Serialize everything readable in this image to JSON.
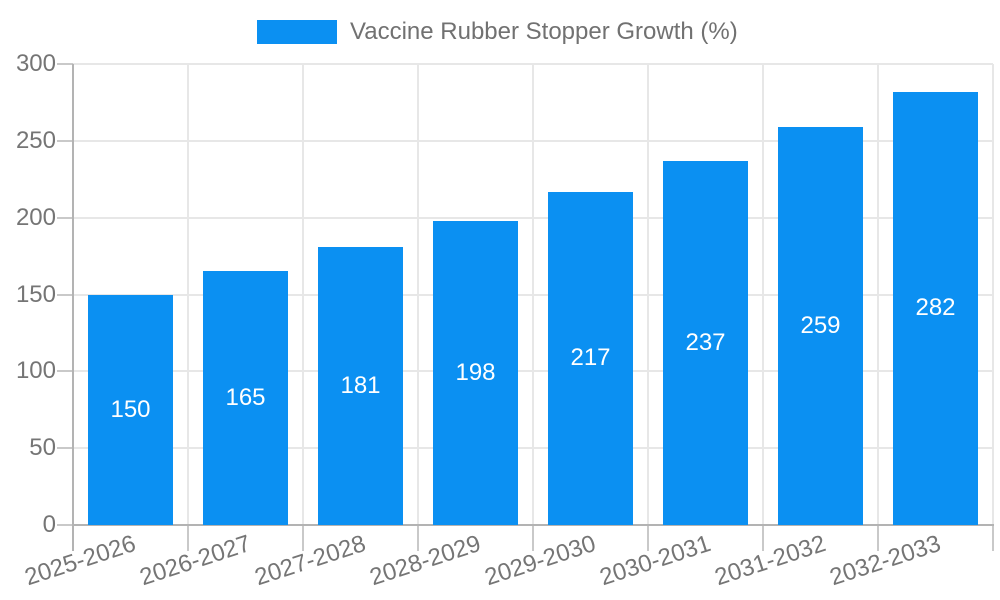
{
  "legend": {
    "label": "Vaccine Rubber Stopper Growth (%)"
  },
  "colors": {
    "bar": "#0b90f2",
    "grid": "#e7e7e7",
    "axis": "#b3b3b3",
    "tick": "#c9c9c9",
    "tick_text": "#757575",
    "value_text": "#ffffff",
    "legend_text": "#717171",
    "background": "#ffffff"
  },
  "chart_data": {
    "type": "bar",
    "title": "",
    "xlabel": "",
    "ylabel": "",
    "categories": [
      "2025-2026",
      "2026-2027",
      "2027-2028",
      "2028-2029",
      "2029-2030",
      "2030-2031",
      "2031-2032",
      "2032-2033"
    ],
    "series": [
      {
        "name": "Vaccine Rubber Stopper Growth (%)",
        "values": [
          150,
          165,
          181,
          198,
          217,
          237,
          259,
          282
        ]
      }
    ],
    "ylim": [
      0,
      300
    ],
    "yticks": [
      0,
      50,
      100,
      150,
      200,
      250,
      300
    ],
    "grid": "horizontal-and-vertical",
    "legend_position": "top-center",
    "value_labels": "white, centered inside bars",
    "x_tick_rotation_deg": -18
  }
}
